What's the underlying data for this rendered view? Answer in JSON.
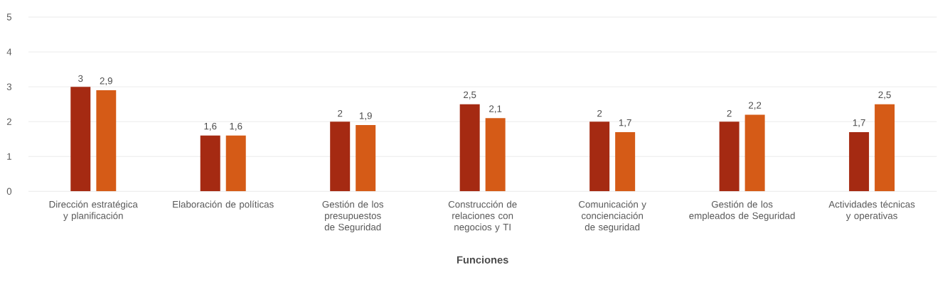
{
  "chart_data": {
    "type": "bar",
    "xlabel": "Funciones",
    "categories": [
      "Dirección estratégica y planificación",
      "Elaboración de políticas",
      "Gestión de los presupuestos de Seguridad",
      "Construcción de relaciones con negocios y TI",
      "Comunicación y concienciación de seguridad",
      "Gestión de los empleados de Seguridad",
      "Actividades técnicas y operativas"
    ],
    "series": [
      {
        "color": "#a52a12",
        "values": [
          3,
          1.6,
          2,
          2.5,
          2,
          2,
          1.7
        ],
        "value_labels": [
          "3",
          "1,6",
          "2",
          "2,5",
          "2",
          "2",
          "1,7"
        ]
      },
      {
        "color": "#d55b17",
        "values": [
          2.9,
          1.6,
          1.9,
          2.1,
          1.7,
          2.2,
          2.5
        ],
        "value_labels": [
          "2,9",
          "1,6",
          "1,9",
          "2,1",
          "1,7",
          "2,2",
          "2,5"
        ]
      }
    ],
    "ylim": [
      0,
      5
    ],
    "yticks": [
      0,
      1,
      2,
      3,
      4,
      5
    ],
    "grid": "y"
  }
}
